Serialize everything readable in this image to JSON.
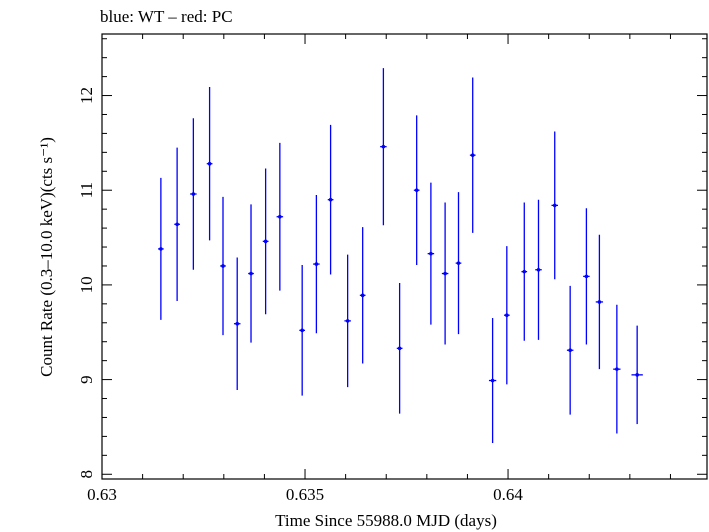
{
  "chart_data": {
    "type": "scatter",
    "title": "blue: WT – red: PC",
    "xlabel": "Time Since 55988.0 MJD (days)",
    "ylabel": "Count Rate (0.3–10.0 keV)(cts s⁻¹)",
    "xlim": [
      0.63,
      0.6449
    ],
    "ylim": [
      7.95,
      12.65
    ],
    "x_ticks": [
      0.63,
      0.635,
      0.64
    ],
    "y_ticks": [
      8,
      9,
      10,
      11,
      12
    ],
    "x_tick_labels": [
      "0.63",
      "0.635",
      "0.64"
    ],
    "y_tick_labels": [
      "8",
      "9",
      "10",
      "11",
      "12"
    ],
    "grid": false,
    "series": [
      {
        "color": "#0000ff",
        "points": [
          {
            "x": 0.63145,
            "y": 10.38,
            "xerr": 7e-05,
            "yerr": 0.75
          },
          {
            "x": 0.63185,
            "y": 10.64,
            "xerr": 7e-05,
            "yerr": 0.81
          },
          {
            "x": 0.63225,
            "y": 10.96,
            "xerr": 8e-05,
            "yerr": 0.8
          },
          {
            "x": 0.63265,
            "y": 11.28,
            "xerr": 7e-05,
            "yerr": 0.81
          },
          {
            "x": 0.63298,
            "y": 10.2,
            "xerr": 7e-05,
            "yerr": 0.73
          },
          {
            "x": 0.63333,
            "y": 9.59,
            "xerr": 8e-05,
            "yerr": 0.7
          },
          {
            "x": 0.63367,
            "y": 10.12,
            "xerr": 7e-05,
            "yerr": 0.73
          },
          {
            "x": 0.63403,
            "y": 10.46,
            "xerr": 7e-05,
            "yerr": 0.77
          },
          {
            "x": 0.63438,
            "y": 10.72,
            "xerr": 8e-05,
            "yerr": 0.78
          },
          {
            "x": 0.63493,
            "y": 9.52,
            "xerr": 7e-05,
            "yerr": 0.69
          },
          {
            "x": 0.63528,
            "y": 10.22,
            "xerr": 8e-05,
            "yerr": 0.73
          },
          {
            "x": 0.63563,
            "y": 10.9,
            "xerr": 7e-05,
            "yerr": 0.79
          },
          {
            "x": 0.63605,
            "y": 9.62,
            "xerr": 8e-05,
            "yerr": 0.7
          },
          {
            "x": 0.63642,
            "y": 9.89,
            "xerr": 7e-05,
            "yerr": 0.72
          },
          {
            "x": 0.63693,
            "y": 11.46,
            "xerr": 8e-05,
            "yerr": 0.83
          },
          {
            "x": 0.63733,
            "y": 9.33,
            "xerr": 7e-05,
            "yerr": 0.69
          },
          {
            "x": 0.63775,
            "y": 11.0,
            "xerr": 7e-05,
            "yerr": 0.79
          },
          {
            "x": 0.6381,
            "y": 10.33,
            "xerr": 8e-05,
            "yerr": 0.75
          },
          {
            "x": 0.63845,
            "y": 10.12,
            "xerr": 8e-05,
            "yerr": 0.75
          },
          {
            "x": 0.63878,
            "y": 10.23,
            "xerr": 7e-05,
            "yerr": 0.75
          },
          {
            "x": 0.63913,
            "y": 11.37,
            "xerr": 7e-05,
            "yerr": 0.82
          },
          {
            "x": 0.63962,
            "y": 8.99,
            "xerr": 9e-05,
            "yerr": 0.66
          },
          {
            "x": 0.63997,
            "y": 9.68,
            "xerr": 7e-05,
            "yerr": 0.73
          },
          {
            "x": 0.6404,
            "y": 10.14,
            "xerr": 7e-05,
            "yerr": 0.73
          },
          {
            "x": 0.64075,
            "y": 10.16,
            "xerr": 8e-05,
            "yerr": 0.74
          },
          {
            "x": 0.64115,
            "y": 10.84,
            "xerr": 8e-05,
            "yerr": 0.78
          },
          {
            "x": 0.64153,
            "y": 9.31,
            "xerr": 8e-05,
            "yerr": 0.68
          },
          {
            "x": 0.64193,
            "y": 10.09,
            "xerr": 8e-05,
            "yerr": 0.72
          },
          {
            "x": 0.64225,
            "y": 9.82,
            "xerr": 9e-05,
            "yerr": 0.71
          },
          {
            "x": 0.64268,
            "y": 9.11,
            "xerr": 9e-05,
            "yerr": 0.68
          },
          {
            "x": 0.64318,
            "y": 9.05,
            "xerr": 0.00014,
            "yerr": 0.52
          }
        ]
      }
    ]
  }
}
